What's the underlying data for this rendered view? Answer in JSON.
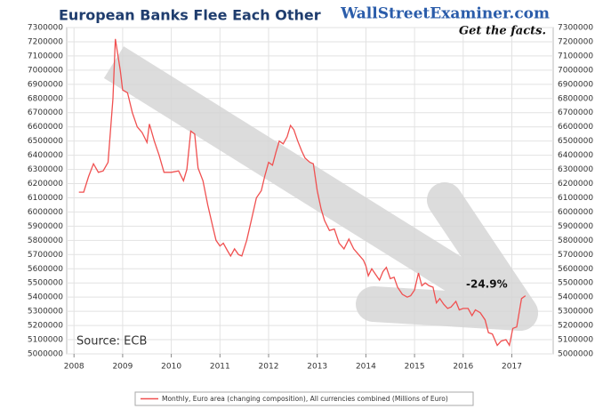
{
  "chart_data": {
    "type": "line",
    "title": "European Banks Flee Each Other",
    "annotations": [
      "WallStreetExaminer.com",
      "Get the facts.",
      "Source: ECB",
      "-24.9%"
    ],
    "xlim": [
      2007.85,
      2017.85
    ],
    "xticks": [
      2008,
      2009,
      2010,
      2011,
      2012,
      2013,
      2014,
      2015,
      2016,
      2017
    ],
    "ylim": [
      5000000,
      7300000
    ],
    "yticks": [
      5000000,
      5100000,
      5200000,
      5300000,
      5400000,
      5500000,
      5600000,
      5700000,
      5800000,
      5900000,
      6000000,
      6100000,
      6200000,
      6300000,
      6400000,
      6500000,
      6600000,
      6700000,
      6800000,
      6900000,
      7000000,
      7100000,
      7200000,
      7300000
    ],
    "grid": true,
    "legend": "bottom",
    "series": [
      {
        "name": "Monthly, Euro area (changing composition), All currencies combined (Millions of Euro)",
        "color": "#f05050",
        "x": [
          2008.1,
          2008.2,
          2008.3,
          2008.4,
          2008.5,
          2008.6,
          2008.7,
          2008.8,
          2008.85,
          2008.95,
          2009.0,
          2009.1,
          2009.2,
          2009.3,
          2009.4,
          2009.5,
          2009.55,
          2009.65,
          2009.75,
          2009.85,
          2010.0,
          2010.15,
          2010.25,
          2010.32,
          2010.4,
          2010.48,
          2010.55,
          2010.65,
          2010.75,
          2010.85,
          2010.92,
          2011.0,
          2011.07,
          2011.15,
          2011.22,
          2011.3,
          2011.38,
          2011.45,
          2011.55,
          2011.65,
          2011.75,
          2011.85,
          2011.92,
          2012.0,
          2012.08,
          2012.15,
          2012.22,
          2012.3,
          2012.38,
          2012.45,
          2012.52,
          2012.6,
          2012.68,
          2012.75,
          2012.85,
          2012.92,
          2013.0,
          2013.08,
          2013.15,
          2013.25,
          2013.35,
          2013.45,
          2013.55,
          2013.65,
          2013.75,
          2013.85,
          2013.95,
          2014.0,
          2014.05,
          2014.12,
          2014.2,
          2014.28,
          2014.35,
          2014.42,
          2014.5,
          2014.58,
          2014.65,
          2014.75,
          2014.85,
          2014.92,
          2015.0,
          2015.08,
          2015.15,
          2015.22,
          2015.3,
          2015.38,
          2015.45,
          2015.52,
          2015.6,
          2015.68,
          2015.75,
          2015.85,
          2015.92,
          2016.0,
          2016.1,
          2016.18,
          2016.25,
          2016.35,
          2016.45,
          2016.52,
          2016.6,
          2016.7,
          2016.78,
          2016.88,
          2016.95,
          2017.02,
          2017.1,
          2017.2,
          2017.28
        ],
        "values": [
          6140000,
          6140000,
          6250000,
          6340000,
          6280000,
          6290000,
          6350000,
          6800000,
          7220000,
          7000000,
          6860000,
          6840000,
          6700000,
          6600000,
          6560000,
          6490000,
          6620000,
          6500000,
          6400000,
          6280000,
          6280000,
          6290000,
          6220000,
          6300000,
          6570000,
          6550000,
          6310000,
          6220000,
          6050000,
          5900000,
          5800000,
          5760000,
          5780000,
          5730000,
          5690000,
          5740000,
          5700000,
          5690000,
          5800000,
          5950000,
          6100000,
          6150000,
          6250000,
          6350000,
          6330000,
          6420000,
          6500000,
          6480000,
          6530000,
          6610000,
          6580000,
          6500000,
          6430000,
          6380000,
          6350000,
          6340000,
          6150000,
          6020000,
          5940000,
          5870000,
          5880000,
          5780000,
          5740000,
          5810000,
          5740000,
          5700000,
          5660000,
          5620000,
          5550000,
          5600000,
          5560000,
          5520000,
          5580000,
          5610000,
          5530000,
          5540000,
          5470000,
          5420000,
          5400000,
          5410000,
          5450000,
          5570000,
          5480000,
          5500000,
          5480000,
          5470000,
          5360000,
          5390000,
          5350000,
          5320000,
          5330000,
          5370000,
          5310000,
          5320000,
          5320000,
          5270000,
          5310000,
          5290000,
          5240000,
          5150000,
          5140000,
          5060000,
          5090000,
          5100000,
          5060000,
          5180000,
          5190000,
          5390000,
          5410000
        ]
      }
    ]
  }
}
